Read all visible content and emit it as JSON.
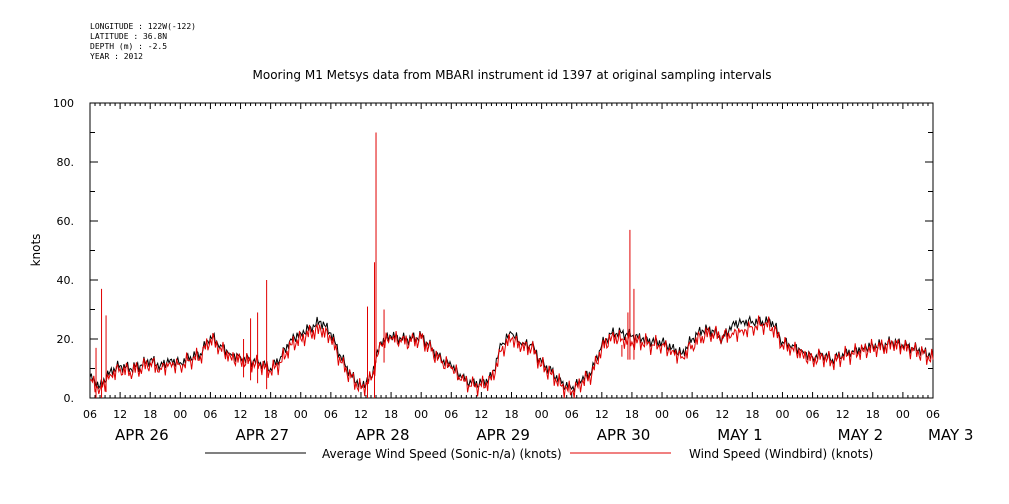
{
  "meta": {
    "longitude": "LONGITUDE : 122W(-122)",
    "latitude": "LATITUDE : 36.8N",
    "depth": "DEPTH (m) : -2.5",
    "year": "YEAR : 2012"
  },
  "chart_data": {
    "type": "line",
    "title": "Mooring M1 Metsys data from MBARI instrument id 1397 at original sampling intervals",
    "ylabel": "knots",
    "ylim": [
      0,
      100
    ],
    "yticks": [
      "0.",
      "20.",
      "40.",
      "60.",
      "80.",
      "100"
    ],
    "xlim": [
      0,
      168
    ],
    "xticks": [
      "06",
      "12",
      "18",
      "00",
      "06",
      "12",
      "18",
      "00",
      "06",
      "12",
      "18",
      "00",
      "06",
      "12",
      "18",
      "00",
      "06",
      "12",
      "18",
      "00",
      "06",
      "12",
      "18",
      "00",
      "06",
      "12",
      "18",
      "00",
      "06"
    ],
    "day_labels": [
      {
        "label": "APR 26",
        "x": 3
      },
      {
        "label": "APR 27",
        "x": 27
      },
      {
        "label": "APR 28",
        "x": 51
      },
      {
        "label": "APR 29",
        "x": 75
      },
      {
        "label": "APR 30",
        "x": 99
      },
      {
        "label": "MAY  1",
        "x": 123
      },
      {
        "label": "MAY  2",
        "x": 147
      },
      {
        "label": "MAY  3",
        "x": 165
      }
    ],
    "grid": false,
    "legend": "bottom",
    "series": [
      {
        "name": "Average Wind Speed (Sonic-n/a) (knots)",
        "color": "#000000",
        "x": [
          0,
          2,
          4,
          6,
          8,
          10,
          12,
          14,
          16,
          18,
          20,
          22,
          24,
          26,
          28,
          30,
          32,
          34,
          36,
          38,
          40,
          42,
          44,
          46,
          48,
          50,
          52,
          54,
          56,
          58,
          60,
          62,
          64,
          66,
          68,
          70,
          72,
          74,
          76,
          78,
          80,
          82,
          84,
          86,
          88,
          90,
          92,
          94,
          96,
          98,
          100,
          102,
          104,
          106,
          108,
          110,
          112,
          114,
          116,
          118,
          120,
          122,
          124,
          126,
          128,
          130,
          132,
          134,
          136,
          138,
          140,
          142,
          144,
          146,
          148,
          150,
          152,
          154,
          156,
          158,
          160,
          162,
          164,
          166,
          168
        ],
        "y": [
          7,
          4,
          9,
          11,
          10,
          11,
          13,
          11,
          13,
          12,
          14,
          15,
          21,
          18,
          15,
          14,
          13,
          12,
          10,
          14,
          20,
          22,
          24,
          26,
          22,
          14,
          8,
          4,
          7,
          19,
          21,
          20,
          20,
          21,
          17,
          13,
          11,
          7,
          5,
          5,
          7,
          18,
          22,
          18,
          18,
          12,
          9,
          5,
          3,
          6,
          9,
          18,
          22,
          22,
          21,
          20,
          19,
          19,
          17,
          15,
          20,
          23,
          23,
          20,
          25,
          26,
          26,
          26,
          26,
          19,
          18,
          16,
          14,
          15,
          13,
          15,
          16,
          17,
          18,
          18,
          19,
          18,
          17,
          16,
          14
        ]
      },
      {
        "name": "Wind Speed (Windbird) (knots)",
        "color": "#e00000",
        "x": [
          0,
          2,
          4,
          6,
          8,
          10,
          12,
          14,
          16,
          18,
          20,
          22,
          24,
          26,
          28,
          30,
          32,
          34,
          36,
          38,
          40,
          42,
          44,
          46,
          48,
          50,
          52,
          54,
          56,
          58,
          60,
          62,
          64,
          66,
          68,
          70,
          72,
          74,
          76,
          78,
          80,
          82,
          84,
          86,
          88,
          90,
          92,
          94,
          96,
          98,
          100,
          102,
          104,
          106,
          108,
          110,
          112,
          114,
          116,
          118,
          120,
          122,
          124,
          126,
          128,
          130,
          132,
          134,
          136,
          138,
          140,
          142,
          144,
          146,
          148,
          150,
          152,
          154,
          156,
          158,
          160,
          162,
          164,
          166,
          168
        ],
        "y": [
          6,
          3,
          8,
          10,
          9,
          10,
          12,
          10,
          12,
          11,
          13,
          14,
          20,
          17,
          14,
          13,
          12,
          11,
          9,
          12,
          18,
          20,
          22,
          23,
          20,
          12,
          7,
          3,
          6,
          18,
          20,
          19,
          19,
          20,
          16,
          12,
          10,
          6,
          4,
          4,
          6,
          16,
          20,
          17,
          17,
          11,
          8,
          4,
          2,
          5,
          8,
          17,
          21,
          20,
          19,
          19,
          18,
          18,
          16,
          14,
          18,
          21,
          22,
          21,
          22,
          23,
          24,
          25,
          24,
          18,
          17,
          15,
          13,
          14,
          12,
          14,
          15,
          16,
          17,
          17,
          18,
          17,
          16,
          15,
          13
        ],
        "spikes": [
          {
            "x": 2.3,
            "y": 37
          },
          {
            "x": 3.2,
            "y": 28
          },
          {
            "x": 1.2,
            "y": 17
          },
          {
            "x": 32.0,
            "y": 27
          },
          {
            "x": 33.4,
            "y": 29
          },
          {
            "x": 35.2,
            "y": 40
          },
          {
            "x": 30.6,
            "y": 20
          },
          {
            "x": 55.3,
            "y": 31
          },
          {
            "x": 57.0,
            "y": 90
          },
          {
            "x": 56.7,
            "y": 46
          },
          {
            "x": 58.6,
            "y": 30
          },
          {
            "x": 107.6,
            "y": 57
          },
          {
            "x": 107.2,
            "y": 29
          },
          {
            "x": 108.4,
            "y": 37
          },
          {
            "x": 106.0,
            "y": 18
          }
        ]
      }
    ]
  }
}
